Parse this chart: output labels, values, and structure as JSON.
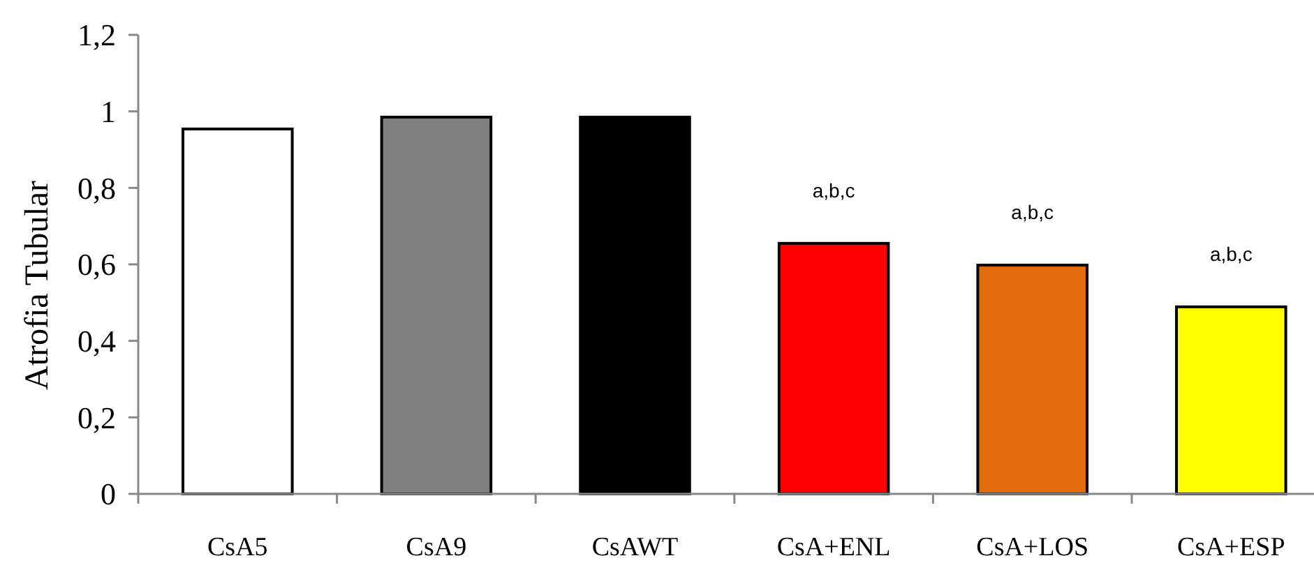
{
  "chart_data": {
    "type": "bar",
    "ylabel": "Atrofia Tubular",
    "categories": [
      "CsA5",
      "CsA9",
      "CsAWT",
      "CsA+ENL",
      "CsA+LOS",
      "CsA+ESP"
    ],
    "values": [
      0.954,
      0.985,
      0.985,
      0.655,
      0.598,
      0.489
    ],
    "colors": [
      "#ffffff",
      "#808080",
      "#000000",
      "#ff0000",
      "#e36c0a",
      "#ffff00"
    ],
    "ylim": [
      0,
      1.2
    ],
    "yticks": [
      0,
      {
        "value": 0.2,
        "label": "0,2"
      },
      {
        "value": 0.4,
        "label": "0,4"
      },
      {
        "value": 0.6,
        "label": "0,6"
      },
      {
        "value": 0.8,
        "label": "0,8"
      },
      1,
      {
        "value": 1.2,
        "label": "1,2"
      }
    ],
    "grid": false,
    "annotations": [
      {
        "text": "a,b,c",
        "x": "CsA+ENL",
        "y": 0.655
      },
      {
        "text": "a,b,c",
        "x": "CsA+LOS",
        "y": 0.598
      },
      {
        "text": "a,b,c",
        "x": "CsA+ESP",
        "y": 0.489
      }
    ]
  }
}
